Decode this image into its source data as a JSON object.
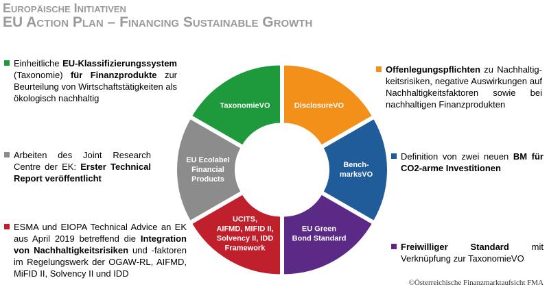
{
  "header": {
    "title": "Europäische Initiativen",
    "subtitle": "EU Action Plan – Financing Sustainable Growth"
  },
  "segments": [
    {
      "label": [
        "DisclosureVO"
      ],
      "color": "#f39019"
    },
    {
      "label": [
        "Bench-",
        "marksVO"
      ],
      "color": "#1f5c99"
    },
    {
      "label": [
        "EU Green",
        "Bond Standard"
      ],
      "color": "#5b2a86"
    },
    {
      "label": [
        "UCITS,",
        "AIFMD, MIFID II,",
        "Solvency II, IDD",
        "Framework"
      ],
      "color": "#c0202b"
    },
    {
      "label": [
        "EU Ecolabel",
        "Financial",
        "Products"
      ],
      "color": "#8c8c8c"
    },
    {
      "label": [
        "TaxonomieVO"
      ],
      "color": "#1e9a3c"
    }
  ],
  "items": [
    {
      "color": "#1e9a3c",
      "runs": [
        {
          "text": "Einheitliche "
        },
        {
          "text": "EU-Klassifizierungssystem",
          "bold": true
        },
        {
          "text": " (Taxonomie) "
        },
        {
          "text": "für Finanzprodukte",
          "bold": true
        },
        {
          "text": " zur Beurteilung von Wirtschaftstätigkeiten als ökologisch nachhaltig"
        }
      ]
    },
    {
      "color": "#f39019",
      "runs": [
        {
          "text": "Offenlegungspflichten",
          "bold": true
        },
        {
          "text": " zu Nachhaltig­keitsrisiken, negative Auswirkungen auf Nachhaltigkeitsfaktoren sowie bei nachhaltigen Finanzprodukten"
        }
      ]
    },
    {
      "color": "#8c8c8c",
      "runs": [
        {
          "text": "Arbeiten des Joint Research Centre der EK: "
        },
        {
          "text": "Erster Technical Report veröffentlicht",
          "bold": true
        }
      ]
    },
    {
      "color": "#1f5c99",
      "runs": [
        {
          "text": "Definition von zwei neuen "
        },
        {
          "text": "BM für CO2-arme Investitionen",
          "bold": true
        }
      ]
    },
    {
      "color": "#c0202b",
      "runs": [
        {
          "text": "ESMA und EIOPA Technical Advice an EK aus April 2019 betreffend die "
        },
        {
          "text": "Integration von Nachhaltigkeitsrisiken",
          "bold": true
        },
        {
          "text": " und -faktoren im Regelungswerk der OGAW-RL, AIFMD, MiFID II, Solvency II und IDD"
        }
      ]
    },
    {
      "color": "#5b2a86",
      "runs": [
        {
          "text": "Freiwilliger Standard",
          "bold": true
        },
        {
          "text": " mit Verknüpfung zur TaxonomieVO"
        }
      ]
    }
  ],
  "footer": "©Österreichische Finanzmarktaufsicht FMA"
}
